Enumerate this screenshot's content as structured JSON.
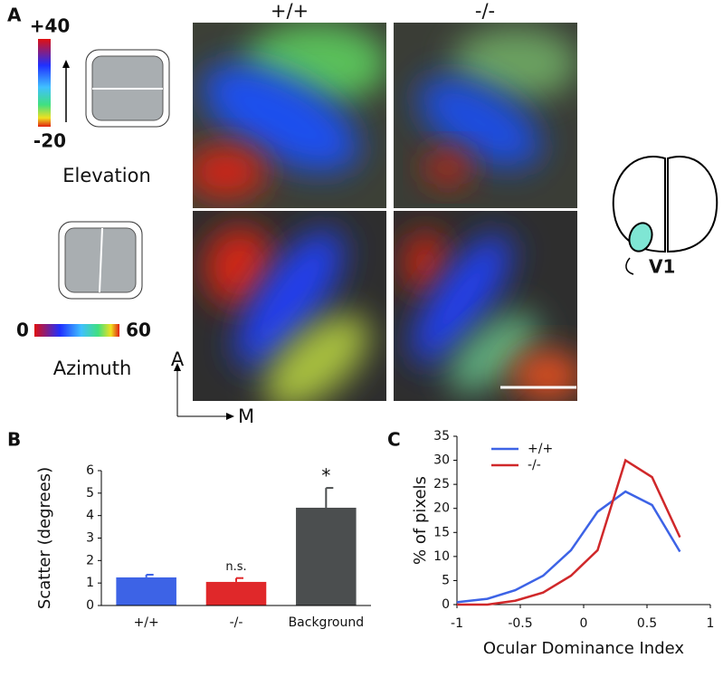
{
  "panel_a": {
    "panel_label": "A",
    "columns": [
      "+/+",
      "-/-"
    ],
    "elevation": {
      "max": "+40",
      "min": "-20",
      "label": "Elevation"
    },
    "azimuth": {
      "min": "0",
      "max": "60",
      "label": "Azimuth"
    },
    "axes": [
      "A",
      "M"
    ],
    "brain_label": "V1"
  },
  "chart_data": [
    {
      "type": "bar",
      "panel_label": "B",
      "ylabel": "Scatter (degrees)",
      "categories": [
        "+/+",
        "-/-",
        "Background"
      ],
      "values": [
        1.25,
        1.05,
        4.35
      ],
      "errors": [
        0.12,
        0.17,
        0.88
      ],
      "colors": [
        "#3d63e6",
        "#e0282a",
        "#4b4e4f"
      ],
      "annotations": [
        {
          "index": 1,
          "text": "n.s."
        },
        {
          "index": 2,
          "text": "*"
        }
      ],
      "ylim": [
        0,
        6
      ],
      "yticks": [
        0,
        1,
        2,
        3,
        4,
        5,
        6
      ]
    },
    {
      "type": "line",
      "panel_label": "C",
      "xlabel": "Ocular Dominance Index",
      "ylabel": "% of pixels",
      "x": [
        -1,
        -0.76,
        -0.54,
        -0.32,
        -0.1,
        0.11,
        0.33,
        0.54,
        0.76
      ],
      "series": [
        {
          "name": "+/+",
          "color": "#3d63e6",
          "values": [
            0.5,
            1.2,
            3,
            6,
            11.3,
            19.3,
            23.5,
            20.7,
            11
          ]
        },
        {
          "name": "-/-",
          "color": "#d0282a",
          "values": [
            0,
            0,
            0.8,
            2.5,
            6,
            11.3,
            30,
            26.5,
            14
          ]
        }
      ],
      "legend": "upper left",
      "xlim": [
        -1,
        1
      ],
      "xticks": [
        -1,
        -0.5,
        0,
        0.5,
        1
      ],
      "ylim": [
        0,
        35
      ],
      "yticks": [
        0,
        5,
        10,
        15,
        20,
        25,
        30,
        35
      ]
    }
  ]
}
